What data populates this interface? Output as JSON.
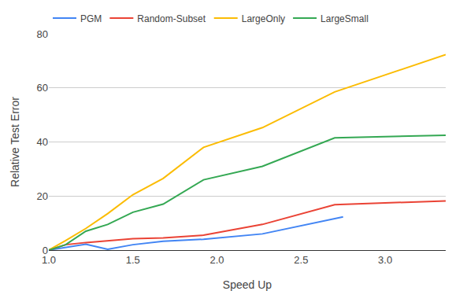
{
  "chart_data": {
    "type": "line",
    "x_label": "Speed Up",
    "y_label": "Relative Test Error",
    "series": [
      {
        "name": "PGM",
        "color": "#4285F4",
        "x": [
          1.0,
          1.1,
          1.22,
          1.35,
          1.5,
          1.68,
          1.92,
          2.27,
          2.75
        ],
        "values": [
          0,
          1,
          2.2,
          0.3,
          2,
          3.3,
          4,
          6,
          12.3
        ]
      },
      {
        "name": "Random-Subset",
        "color": "#EA4335",
        "x": [
          1.0,
          1.1,
          1.22,
          1.35,
          1.5,
          1.68,
          1.92,
          2.27,
          2.7,
          3.36
        ],
        "values": [
          0,
          2,
          2.8,
          3.5,
          4.2,
          4.5,
          5.5,
          9.5,
          16.8,
          18.2
        ]
      },
      {
        "name": "LargeOnly",
        "color": "#FBBC04",
        "x": [
          1.0,
          1.1,
          1.22,
          1.35,
          1.5,
          1.68,
          1.92,
          2.27,
          2.7,
          3.36
        ],
        "values": [
          0,
          3.5,
          8,
          13.5,
          20.5,
          26.5,
          38,
          45.3,
          58.5,
          72.3
        ]
      },
      {
        "name": "LargeSmall",
        "color": "#34A853",
        "x": [
          1.0,
          1.1,
          1.22,
          1.35,
          1.5,
          1.68,
          1.92,
          2.27,
          2.7,
          3.36
        ],
        "values": [
          0,
          2,
          7,
          9.5,
          14,
          17,
          26,
          31,
          41.5,
          42.5
        ]
      }
    ],
    "xlim": [
      1.0,
      3.36
    ],
    "xticks": [
      {
        "value": 1.0,
        "label": "1.0"
      },
      {
        "value": 1.5,
        "label": "1.5"
      },
      {
        "value": 2.0,
        "label": "2.0"
      },
      {
        "value": 2.5,
        "label": "2.5"
      },
      {
        "value": 3.0,
        "label": "3.0"
      }
    ],
    "ylim": [
      0,
      80
    ],
    "yticks": [
      0,
      20,
      40,
      60,
      80
    ],
    "grid": true,
    "legend": "top"
  }
}
